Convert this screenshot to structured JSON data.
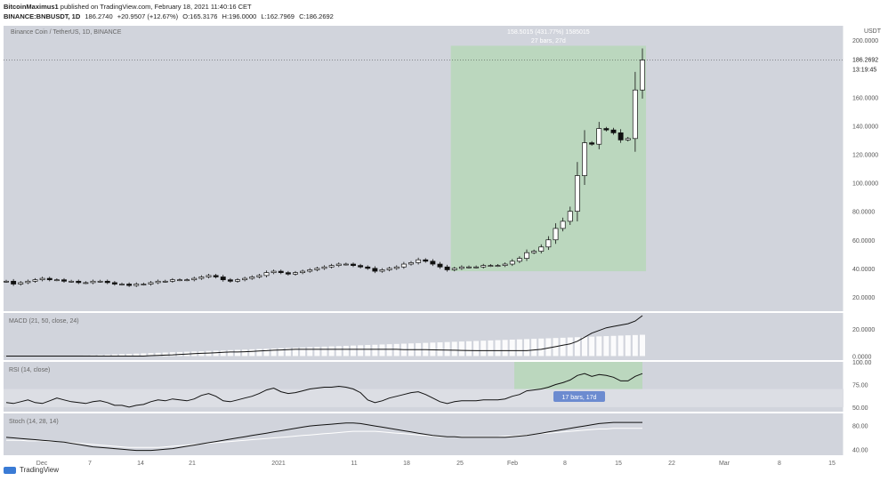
{
  "header": {
    "author": "BitcoinMaximus1",
    "published": "published on TradingView.com, February 18, 2021 11:40:16 CET",
    "symbol": "BINANCE:BNBUSDT, 1D",
    "last": "186.2740",
    "change": "+20.9507 (+12.67%)",
    "open": "O:165.3176",
    "high": "H:196.0000",
    "low": "L:162.7969",
    "close": "C:186.2692"
  },
  "chart_data": {
    "type": "candlestick",
    "title": "Binance Coin / TetherUS, 1D, BINANCE",
    "ylabel": "USDT",
    "y_ticks": [
      "200.0000",
      "180.0000",
      "160.0000",
      "140.0000",
      "120.0000",
      "100.0000",
      "80.0000",
      "60.0000",
      "40.0000",
      "20.0000"
    ],
    "ylim": [
      10,
      210
    ],
    "x_ticks": [
      "Dec",
      "7",
      "14",
      "21",
      "2021",
      "11",
      "18",
      "25",
      "Feb",
      "8",
      "15",
      "22",
      "Mar",
      "8",
      "15"
    ],
    "price_label": "186.2692",
    "time_label": "13:19:45",
    "candles_close": [
      31,
      29,
      30,
      31,
      32,
      33,
      32,
      32,
      31,
      31,
      30,
      30,
      31,
      31,
      30,
      29,
      29,
      28,
      29,
      29,
      30,
      31,
      31,
      32,
      32,
      32,
      33,
      34,
      35,
      34,
      32,
      31,
      32,
      33,
      34,
      35,
      37,
      38,
      37,
      36,
      37,
      38,
      39,
      40,
      41,
      42,
      43,
      43,
      42,
      41,
      40,
      38,
      39,
      40,
      41,
      43,
      44,
      46,
      45,
      43,
      41,
      39,
      40,
      41,
      41,
      41,
      42,
      42,
      42,
      43,
      45,
      47,
      51,
      52,
      55,
      60,
      68,
      73,
      80,
      105,
      128,
      127,
      138,
      137,
      135,
      130,
      131,
      165,
      186
    ],
    "measure_box": {
      "label1": "158.5015 (431.77%) 1585015",
      "label2": "27 bars, 27d",
      "start_index": 62,
      "end_index": 88,
      "low": 38,
      "high": 196
    },
    "macd": {
      "title": "MACD (21, 50, close, 24)",
      "y_ticks": [
        "20.0000",
        "0.0000"
      ],
      "ylim": [
        -3,
        32
      ],
      "line": [
        0,
        0,
        0,
        0,
        0,
        0,
        0,
        0,
        0,
        0,
        0,
        0,
        0,
        0,
        0,
        0,
        0,
        0,
        0,
        0,
        0.3,
        0.5,
        0.7,
        0.9,
        1.2,
        1.5,
        1.8,
        2,
        2.2,
        2.5,
        2.8,
        3,
        3,
        3.2,
        3.5,
        3.8,
        4,
        4.3,
        4.5,
        4.8,
        5,
        5,
        5,
        5,
        5,
        5,
        5,
        5,
        5,
        5,
        5,
        5,
        5,
        5,
        5,
        4.8,
        4.8,
        4.8,
        4.7,
        4.6,
        4.5,
        4.4,
        4.3,
        4.2,
        4.1,
        4,
        4,
        4,
        4,
        4,
        4,
        4,
        4,
        4.5,
        5,
        6,
        7,
        8,
        9,
        11,
        14,
        17,
        19,
        21,
        22,
        23,
        24,
        26,
        30
      ],
      "histogram": [
        -1,
        -1,
        -0.8,
        -0.6,
        -0.5,
        -0.4,
        -0.3,
        -0.2,
        -0.1,
        0,
        0.2,
        0.4,
        0.6,
        0.8,
        1,
        1.2,
        1.4,
        1.6,
        1.8,
        2,
        2.2,
        2.4,
        2.6,
        2.8,
        3,
        3.2,
        3.4,
        3.6,
        3.8,
        4,
        4.2,
        4.4,
        4.6,
        4.8,
        5,
        5.2,
        5.4,
        5.6,
        5.8,
        6,
        6.2,
        6.4,
        6.6,
        6.8,
        7,
        7.2,
        7.4,
        7.6,
        7.8,
        8,
        8.2,
        8.4,
        8.6,
        8.8,
        9,
        9.2,
        9.4,
        9.6,
        9.8,
        10,
        10.2,
        10.4,
        10.6,
        10.8,
        11,
        11.2,
        11.4,
        11.6,
        11.8,
        12,
        12.2,
        12.4,
        12.6,
        12.8,
        13,
        13.2,
        13.4,
        13.6,
        13.8,
        14,
        14.2,
        14.4,
        14.6,
        14.8,
        15,
        15.2,
        15.4,
        15.6,
        15.8
      ]
    },
    "rsi": {
      "title": "RSI (14, close)",
      "y_ticks": [
        "100.00",
        "75.00",
        "50.00"
      ],
      "ylim": [
        45,
        100
      ],
      "band": [
        50,
        70
      ],
      "values": [
        55,
        54,
        56,
        58,
        55,
        54,
        57,
        60,
        58,
        56,
        55,
        54,
        56,
        57,
        55,
        52,
        52,
        50,
        52,
        53,
        56,
        58,
        57,
        59,
        58,
        57,
        59,
        63,
        65,
        62,
        57,
        56,
        58,
        60,
        62,
        65,
        69,
        71,
        67,
        65,
        66,
        68,
        70,
        71,
        72,
        72,
        73,
        72,
        70,
        66,
        58,
        55,
        57,
        60,
        62,
        64,
        66,
        67,
        64,
        60,
        56,
        54,
        56,
        57,
        57,
        57,
        58,
        58,
        58,
        59,
        62,
        64,
        68,
        69,
        70,
        72,
        75,
        77,
        80,
        85,
        87,
        84,
        86,
        85,
        83,
        79,
        79,
        84,
        87
      ],
      "box_label": "17 bars, 17d"
    },
    "stoch": {
      "title": "Stoch (14, 28, 14)",
      "y_ticks": [
        "80.00",
        "40.00"
      ],
      "ylim": [
        30,
        100
      ],
      "k": [
        60,
        59,
        58,
        57,
        56,
        55,
        54,
        53,
        52,
        50,
        48,
        46,
        44,
        43,
        42,
        41,
        40,
        39,
        38,
        38,
        38,
        39,
        40,
        41,
        43,
        45,
        47,
        49,
        51,
        53,
        55,
        57,
        59,
        61,
        63,
        65,
        67,
        69,
        71,
        73,
        75,
        77,
        79,
        80,
        81,
        82,
        83,
        84,
        84,
        83,
        81,
        79,
        77,
        75,
        73,
        71,
        69,
        67,
        65,
        63,
        62,
        61,
        61,
        60,
        60,
        60,
        60,
        60,
        60,
        60,
        61,
        62,
        63,
        65,
        67,
        69,
        71,
        73,
        75,
        77,
        79,
        81,
        83,
        84,
        85,
        85,
        85,
        85,
        85
      ],
      "d": [
        55,
        55,
        55,
        54,
        54,
        54,
        53,
        53,
        52,
        51,
        50,
        49,
        48,
        47,
        46,
        45,
        44,
        43,
        43,
        43,
        43,
        43,
        44,
        45,
        46,
        47,
        48,
        49,
        50,
        51,
        52,
        53,
        54,
        55,
        56,
        57,
        58,
        59,
        60,
        61,
        62,
        63,
        64,
        65,
        66,
        67,
        68,
        69,
        70,
        70,
        70,
        70,
        69,
        68,
        67,
        66,
        65,
        64,
        63,
        62,
        61,
        61,
        61,
        61,
        61,
        61,
        61,
        61,
        61,
        62,
        62,
        63,
        64,
        65,
        66,
        67,
        68,
        69,
        70,
        71,
        72,
        73,
        74,
        74,
        75,
        75,
        75,
        75,
        75
      ]
    }
  },
  "footer": {
    "brand": "TradingView"
  },
  "colors": {
    "chart_bg": "#d1d4dc",
    "measure_fill": "#b7d7b8",
    "up_candle": "#ffffff",
    "down_candle": "#111111",
    "line": "#000000",
    "d_line": "#ffffff",
    "price_label_bg": "#ffffff",
    "rsi_label_bg": "#6c8bd0"
  }
}
